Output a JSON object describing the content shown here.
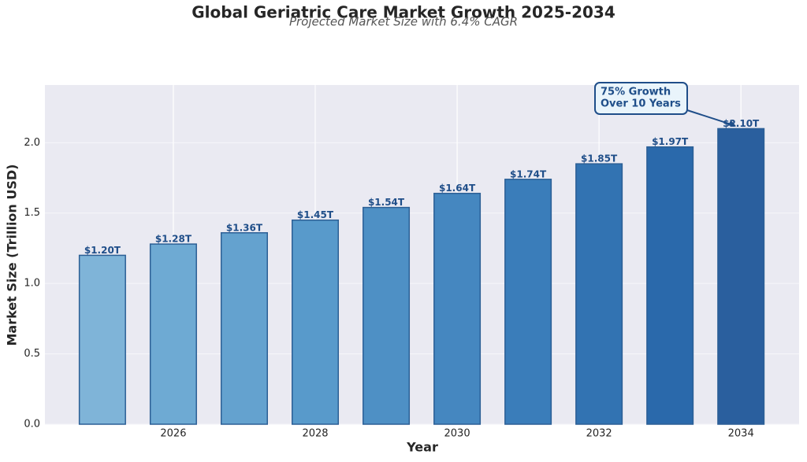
{
  "chart_data": {
    "type": "bar",
    "title": "Global Geriatric Care Market Growth 2025-2034",
    "subtitle": "Projected Market Size with 6.4% CAGR",
    "x_label": "Year",
    "y_label": "Market Size (Trillion USD)",
    "x": [
      2025,
      2026,
      2027,
      2028,
      2029,
      2030,
      2031,
      2032,
      2033,
      2034
    ],
    "values": [
      1.2,
      1.28,
      1.36,
      1.45,
      1.54,
      1.64,
      1.74,
      1.85,
      1.97,
      2.1
    ],
    "value_labels": [
      "$1.20T",
      "$1.28T",
      "$1.36T",
      "$1.45T",
      "$1.54T",
      "$1.64T",
      "$1.74T",
      "$1.85T",
      "$1.97T",
      "$2.10T"
    ],
    "colors": [
      "#7fb4d8",
      "#6eaad3",
      "#64a2cf",
      "#589acb",
      "#4e90c5",
      "#4587c0",
      "#3a7dba",
      "#3273b2",
      "#2a69ab",
      "#2a5f9e"
    ],
    "edge_color": "#2c5f95",
    "xlim": [
      2024.19,
      2034.82
    ],
    "ylim": [
      0,
      2.41
    ],
    "xticks": [
      2026,
      2028,
      2030,
      2032,
      2034
    ],
    "yticks": [
      {
        "value": 0,
        "label": "0.0"
      },
      0.5,
      {
        "value": 1,
        "label": "1.0"
      },
      1.5,
      {
        "value": 2,
        "label": "2.0"
      }
    ],
    "grid": true,
    "annotation": {
      "lines": [
        "75% Growth",
        "Over 10 Years"
      ],
      "color": "#1f4e89"
    }
  }
}
